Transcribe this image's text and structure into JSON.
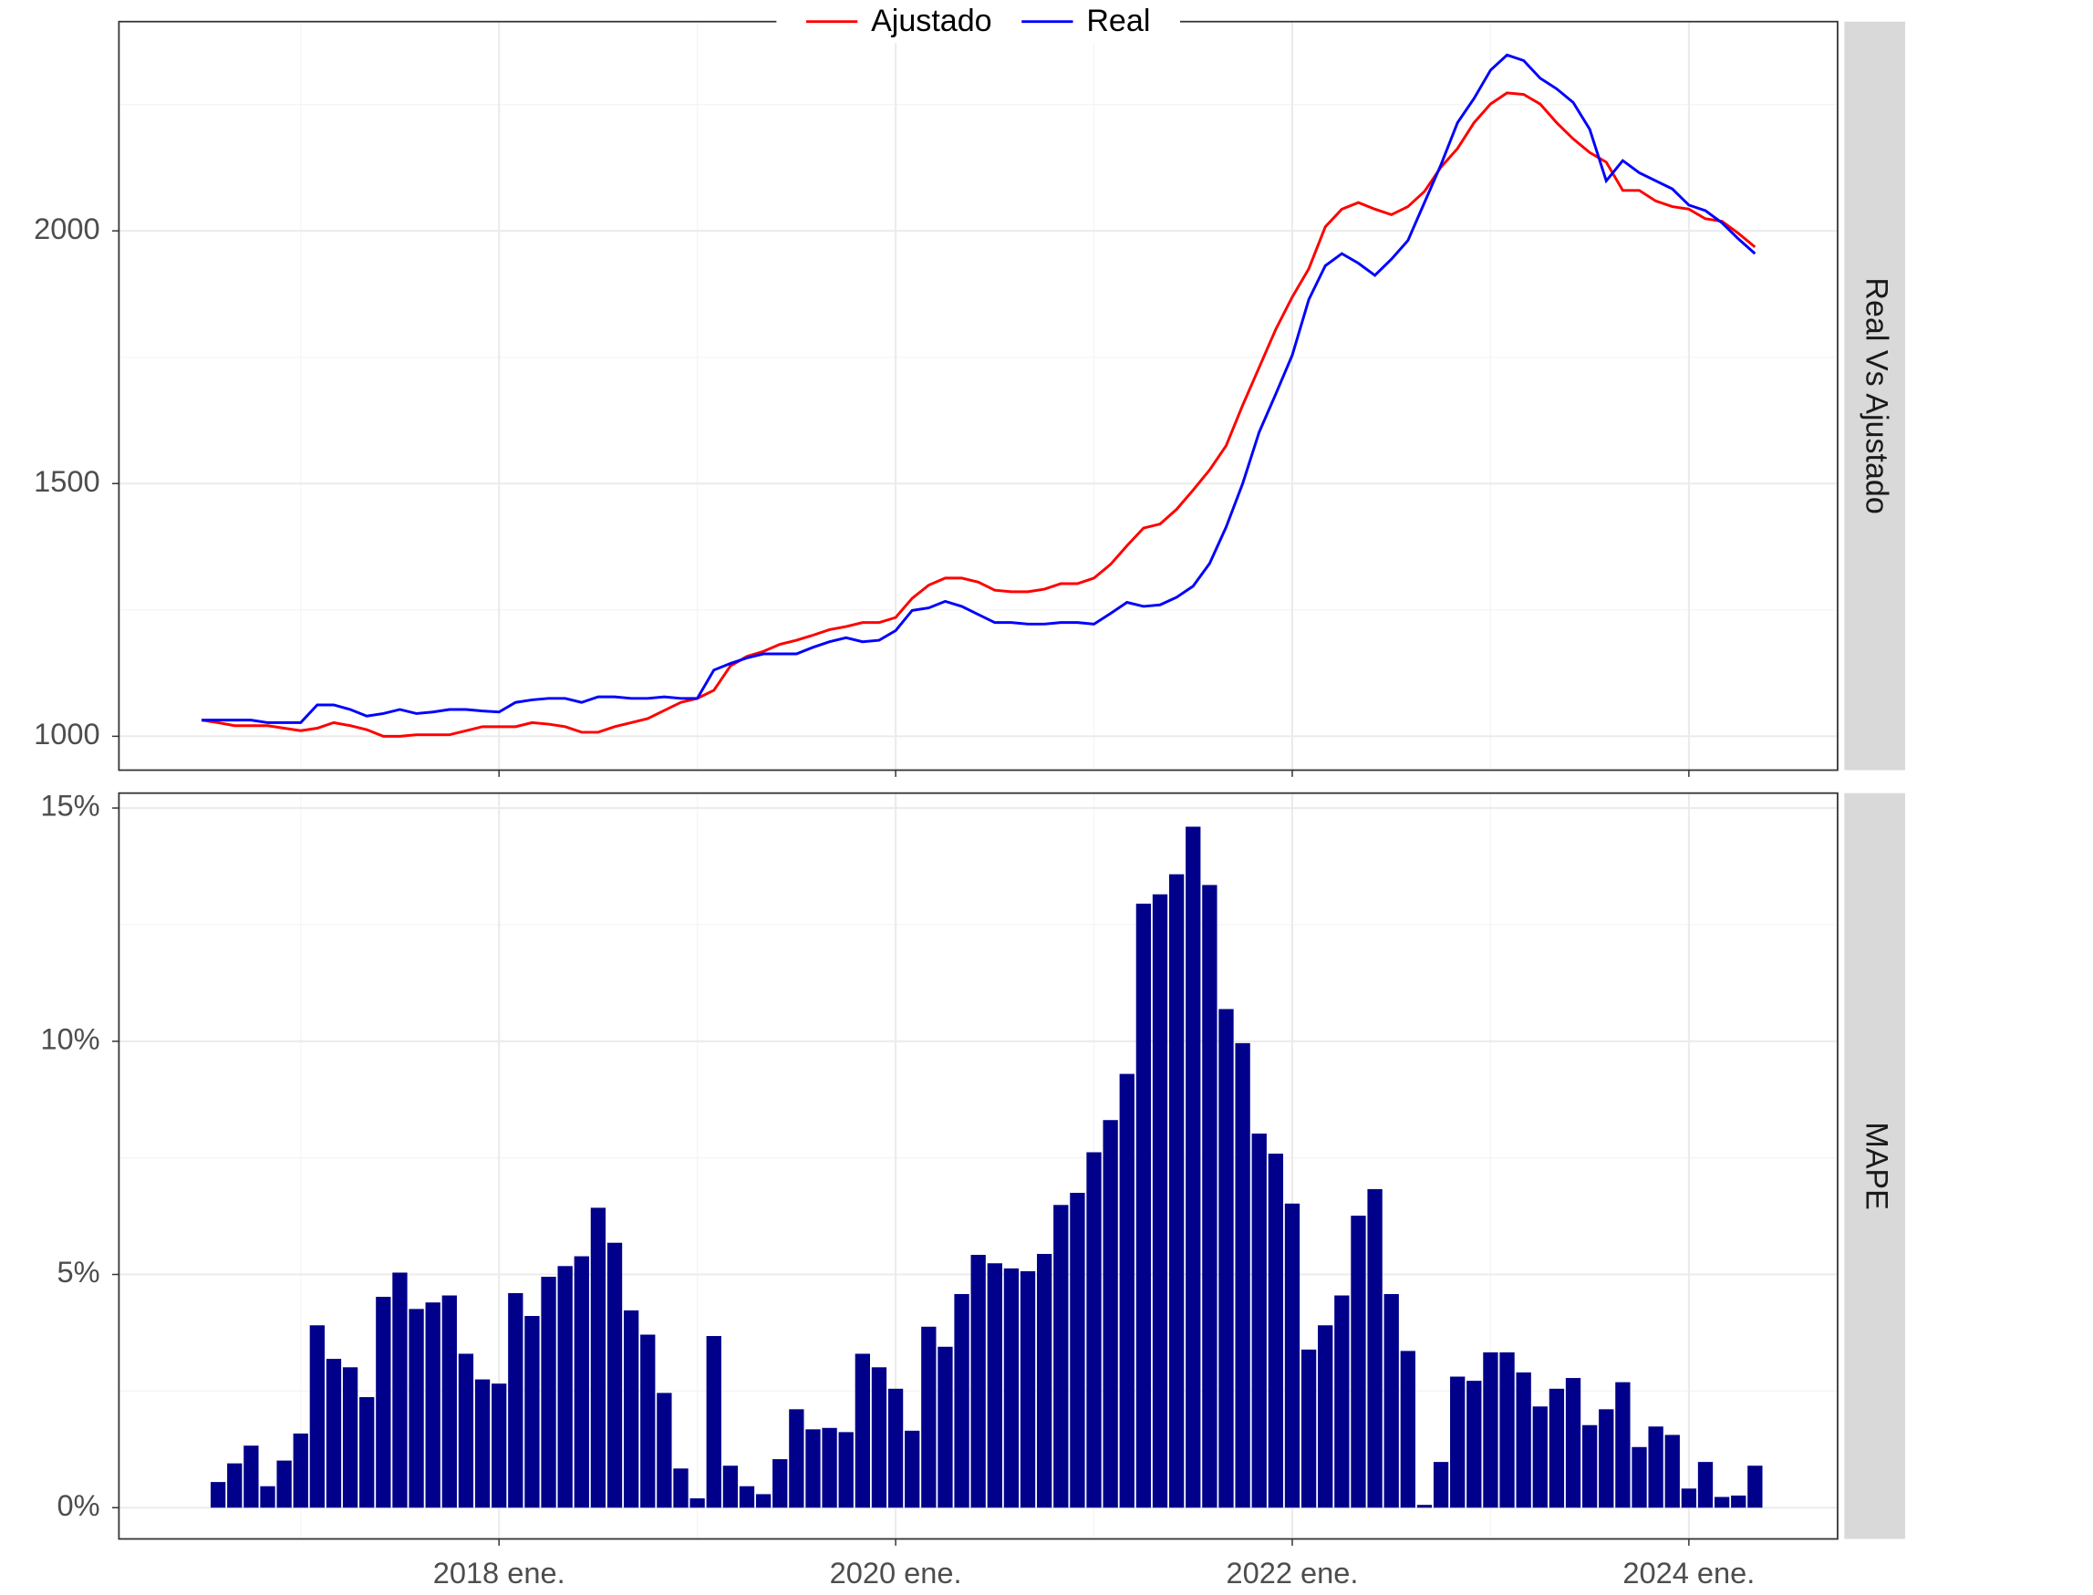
{
  "chart_data": [
    {
      "type": "line",
      "strip_label": "Real Vs Ajustado",
      "legend": "top",
      "grid": true,
      "x": [
        "2016-07",
        "2016-08",
        "2016-09",
        "2016-10",
        "2016-11",
        "2016-12",
        "2017-01",
        "2017-02",
        "2017-03",
        "2017-04",
        "2017-05",
        "2017-06",
        "2017-07",
        "2017-08",
        "2017-09",
        "2017-10",
        "2017-11",
        "2017-12",
        "2018-01",
        "2018-02",
        "2018-03",
        "2018-04",
        "2018-05",
        "2018-06",
        "2018-07",
        "2018-08",
        "2018-09",
        "2018-10",
        "2018-11",
        "2018-12",
        "2019-01",
        "2019-02",
        "2019-03",
        "2019-04",
        "2019-05",
        "2019-06",
        "2019-07",
        "2019-08",
        "2019-09",
        "2019-10",
        "2019-11",
        "2019-12",
        "2020-01",
        "2020-02",
        "2020-03",
        "2020-04",
        "2020-05",
        "2020-06",
        "2020-07",
        "2020-08",
        "2020-09",
        "2020-10",
        "2020-11",
        "2020-12",
        "2021-01",
        "2021-02",
        "2021-03",
        "2021-04",
        "2021-05",
        "2021-06",
        "2021-07",
        "2021-08",
        "2021-09",
        "2021-10",
        "2021-11",
        "2021-12",
        "2022-01",
        "2022-02",
        "2022-03",
        "2022-04",
        "2022-05",
        "2022-06",
        "2022-07",
        "2022-08",
        "2022-09",
        "2022-10",
        "2022-11",
        "2022-12",
        "2023-01",
        "2023-02",
        "2023-03",
        "2023-04",
        "2023-05",
        "2023-06",
        "2023-07",
        "2023-08",
        "2023-09",
        "2023-10",
        "2023-11",
        "2023-12",
        "2024-01",
        "2024-02",
        "2024-03",
        "2024-04",
        "2024-05"
      ],
      "series": [
        {
          "name": "Ajustado",
          "color": "#ff0000",
          "values": [
            1032,
            1027,
            1021,
            1021,
            1021,
            1016,
            1011,
            1016,
            1027,
            1021,
            1013,
            1000,
            1000,
            1003,
            1003,
            1003,
            1011,
            1019,
            1019,
            1019,
            1027,
            1024,
            1019,
            1008,
            1008,
            1019,
            1027,
            1035,
            1051,
            1067,
            1075,
            1091,
            1139,
            1158,
            1168,
            1182,
            1190,
            1200,
            1211,
            1217,
            1225,
            1225,
            1235,
            1273,
            1299,
            1313,
            1313,
            1305,
            1289,
            1286,
            1286,
            1291,
            1302,
            1302,
            1313,
            1340,
            1377,
            1412,
            1420,
            1449,
            1487,
            1527,
            1575,
            1655,
            1730,
            1805,
            1869,
            1925,
            2008,
            2043,
            2056,
            2043,
            2032,
            2048,
            2078,
            2126,
            2163,
            2214,
            2251,
            2273,
            2270,
            2251,
            2214,
            2182,
            2155,
            2136,
            2080,
            2080,
            2059,
            2048,
            2043,
            2024,
            2019,
            1995,
            1968
          ]
        },
        {
          "name": "Real",
          "color": "#0000ff",
          "values": [
            1032,
            1032,
            1032,
            1032,
            1027,
            1027,
            1027,
            1062,
            1062,
            1053,
            1040,
            1045,
            1053,
            1045,
            1048,
            1053,
            1053,
            1050,
            1048,
            1067,
            1072,
            1075,
            1075,
            1067,
            1078,
            1078,
            1075,
            1075,
            1078,
            1075,
            1075,
            1131,
            1144,
            1155,
            1163,
            1163,
            1163,
            1176,
            1187,
            1195,
            1187,
            1190,
            1209,
            1249,
            1254,
            1267,
            1257,
            1241,
            1225,
            1225,
            1222,
            1222,
            1225,
            1225,
            1222,
            1243,
            1265,
            1257,
            1260,
            1275,
            1297,
            1342,
            1414,
            1500,
            1602,
            1677,
            1754,
            1864,
            1931,
            1955,
            1936,
            1912,
            1944,
            1981,
            2056,
            2131,
            2214,
            2262,
            2318,
            2348,
            2337,
            2302,
            2281,
            2254,
            2201,
            2099,
            2139,
            2115,
            2099,
            2083,
            2051,
            2040,
            2016,
            1984,
            1955
          ]
        }
      ],
      "xlim": [
        "2016-02",
        "2024-10"
      ],
      "ylim": [
        933,
        2414
      ],
      "yticks": [
        1000,
        1500,
        2000
      ]
    },
    {
      "type": "bar",
      "strip_label": "MAPE",
      "grid": true,
      "color": "#00008b",
      "x": [
        "2016-07",
        "2016-08",
        "2016-09",
        "2016-10",
        "2016-11",
        "2016-12",
        "2017-01",
        "2017-02",
        "2017-03",
        "2017-04",
        "2017-05",
        "2017-06",
        "2017-07",
        "2017-08",
        "2017-09",
        "2017-10",
        "2017-11",
        "2017-12",
        "2018-01",
        "2018-02",
        "2018-03",
        "2018-04",
        "2018-05",
        "2018-06",
        "2018-07",
        "2018-08",
        "2018-09",
        "2018-10",
        "2018-11",
        "2018-12",
        "2019-01",
        "2019-02",
        "2019-03",
        "2019-04",
        "2019-05",
        "2019-06",
        "2019-07",
        "2019-08",
        "2019-09",
        "2019-10",
        "2019-11",
        "2019-12",
        "2020-01",
        "2020-02",
        "2020-03",
        "2020-04",
        "2020-05",
        "2020-06",
        "2020-07",
        "2020-08",
        "2020-09",
        "2020-10",
        "2020-11",
        "2020-12",
        "2021-01",
        "2021-02",
        "2021-03",
        "2021-04",
        "2021-05",
        "2021-06",
        "2021-07",
        "2021-08",
        "2021-09",
        "2021-10",
        "2021-11",
        "2021-12",
        "2022-01",
        "2022-02",
        "2022-03",
        "2022-04",
        "2022-05",
        "2022-06",
        "2022-07",
        "2022-08",
        "2022-09",
        "2022-10",
        "2022-11",
        "2022-12",
        "2023-01",
        "2023-02",
        "2023-03",
        "2023-04",
        "2023-05",
        "2023-06",
        "2023-07",
        "2023-08",
        "2023-09",
        "2023-10",
        "2023-11",
        "2023-12",
        "2024-01",
        "2024-02",
        "2024-03",
        "2024-04",
        "2024-05"
      ],
      "values": [
        null,
        0.55,
        0.95,
        1.33,
        0.46,
        1.01,
        1.59,
        3.91,
        3.19,
        3.01,
        2.37,
        4.52,
        5.04,
        4.26,
        4.4,
        4.55,
        3.3,
        2.75,
        2.66,
        4.6,
        4.11,
        4.95,
        5.18,
        5.39,
        6.43,
        5.68,
        4.23,
        3.71,
        2.46,
        0.84,
        0.2,
        3.68,
        0.9,
        0.46,
        0.29,
        1.04,
        2.11,
        1.68,
        1.71,
        1.62,
        3.3,
        3.01,
        2.55,
        1.65,
        3.88,
        3.45,
        4.58,
        5.42,
        5.24,
        5.13,
        5.07,
        5.44,
        6.49,
        6.75,
        7.62,
        8.31,
        9.3,
        12.95,
        13.15,
        13.58,
        14.6,
        13.35,
        10.69,
        9.96,
        8.02,
        7.59,
        6.52,
        3.39,
        3.91,
        4.55,
        6.26,
        6.83,
        4.58,
        3.36,
        0.06,
        0.98,
        2.81,
        2.72,
        3.33,
        3.33,
        2.9,
        2.17,
        2.55,
        2.78,
        1.77,
        2.11,
        2.69,
        1.3,
        1.74,
        1.56,
        0.41,
        0.98,
        0.23,
        0.26,
        0.9
      ],
      "xlim": [
        "2016-02",
        "2024-10"
      ],
      "xticks": [
        {
          "value": "2018-01",
          "label": "2018 ene."
        },
        {
          "value": "2020-01",
          "label": "2020 ene."
        },
        {
          "value": "2022-01",
          "label": "2022 ene."
        },
        {
          "value": "2024-01",
          "label": "2024 ene."
        }
      ],
      "ylim": [
        -0.67,
        15.32
      ],
      "yticks": [
        {
          "value": 0,
          "label": "0%"
        },
        {
          "value": 5,
          "label": "5%"
        },
        {
          "value": 10,
          "label": "10%"
        },
        {
          "value": 15,
          "label": "15%"
        }
      ]
    }
  ]
}
